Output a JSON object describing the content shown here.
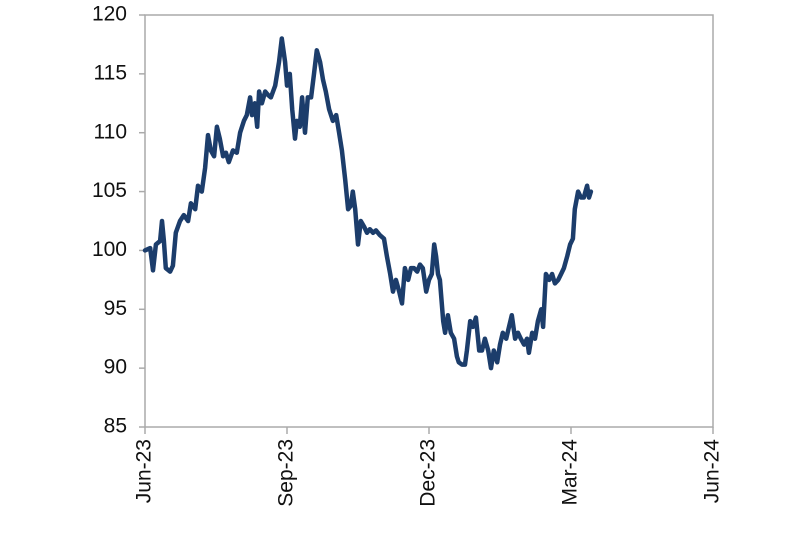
{
  "chart_data": {
    "type": "line",
    "color": "#1c3d6b",
    "xlim": [
      0,
      12
    ],
    "xticks": [
      {
        "value": 0,
        "label": "Jun-23"
      },
      {
        "value": 3,
        "label": "Sep-23"
      },
      {
        "value": 6,
        "label": "Dec-23"
      },
      {
        "value": 9,
        "label": "Mar-24"
      },
      {
        "value": 12,
        "label": "Jun-24"
      }
    ],
    "ylim": [
      85,
      120
    ],
    "yticks": [
      85,
      90,
      95,
      100,
      105,
      110,
      115,
      120
    ],
    "x": [
      0,
      0.11,
      0.17,
      0.23,
      0.32,
      0.36,
      0.4,
      0.44,
      0.53,
      0.59,
      0.65,
      0.74,
      0.82,
      0.91,
      0.97,
      1.06,
      1.12,
      1.2,
      1.27,
      1.33,
      1.39,
      1.46,
      1.52,
      1.58,
      1.65,
      1.71,
      1.77,
      1.86,
      1.94,
      2.01,
      2.09,
      2.15,
      2.22,
      2.26,
      2.32,
      2.37,
      2.41,
      2.47,
      2.54,
      2.6,
      2.66,
      2.75,
      2.83,
      2.89,
      2.96,
      3.0,
      3.06,
      3.11,
      3.17,
      3.21,
      3.27,
      3.32,
      3.38,
      3.44,
      3.51,
      3.57,
      3.63,
      3.7,
      3.76,
      3.82,
      3.89,
      3.97,
      4.04,
      4.1,
      4.16,
      4.23,
      4.29,
      4.35,
      4.39,
      4.44,
      4.5,
      4.56,
      4.63,
      4.69,
      4.75,
      4.82,
      4.88,
      4.96,
      5.05,
      5.11,
      5.18,
      5.24,
      5.3,
      5.37,
      5.43,
      5.49,
      5.56,
      5.62,
      5.68,
      5.75,
      5.81,
      5.87,
      5.94,
      6.0,
      6.06,
      6.11,
      6.15,
      6.19,
      6.23,
      6.3,
      6.34,
      6.4,
      6.46,
      6.53,
      6.59,
      6.63,
      6.7,
      6.76,
      6.8,
      6.87,
      6.93,
      6.99,
      7.06,
      7.12,
      7.18,
      7.25,
      7.31,
      7.37,
      7.44,
      7.5,
      7.56,
      7.63,
      7.69,
      7.75,
      7.82,
      7.88,
      7.94,
      8.01,
      8.07,
      8.11,
      8.18,
      8.24,
      8.3,
      8.37,
      8.41,
      8.47,
      8.54,
      8.6,
      8.66,
      8.73,
      8.79,
      8.85,
      8.92,
      8.98,
      9.04,
      9.08,
      9.15,
      9.21,
      9.27,
      9.34,
      9.38,
      9.42
    ],
    "values": [
      100,
      100.2,
      98.3,
      100.5,
      100.8,
      102.5,
      100.8,
      98.5,
      98.2,
      98.7,
      101.5,
      102.5,
      103,
      102.5,
      104,
      103.5,
      105.5,
      105,
      107,
      109.8,
      108.5,
      108,
      110.5,
      109.5,
      108,
      108.3,
      107.5,
      108.5,
      108.3,
      110,
      111,
      111.5,
      113,
      111.5,
      112.5,
      110.5,
      113.5,
      112.5,
      113.5,
      113.2,
      113,
      114,
      116,
      118,
      116,
      114,
      115,
      112,
      109.5,
      111,
      110.5,
      113,
      110,
      113,
      113,
      115,
      117,
      116,
      114.5,
      113.5,
      112,
      111,
      111.5,
      110,
      108.5,
      106,
      103.5,
      103.8,
      105,
      103.5,
      100.5,
      102.5,
      102,
      101.5,
      101.8,
      101.5,
      101.7,
      101.3,
      101,
      99.5,
      98,
      96.5,
      97.5,
      96.5,
      95.5,
      98.5,
      97.5,
      98.5,
      98.5,
      98.2,
      98.8,
      98.5,
      96.5,
      97.5,
      98,
      100.5,
      99.5,
      98,
      97.5,
      94,
      93,
      94.5,
      93,
      92.5,
      91,
      90.5,
      90.3,
      90.3,
      91.5,
      94,
      93.5,
      94.3,
      91.5,
      91.5,
      92.5,
      91.5,
      90,
      91.5,
      90.5,
      92,
      93,
      92.5,
      93.5,
      94.5,
      92.5,
      93,
      92.5,
      92,
      92.5,
      91.3,
      93,
      92.5,
      94,
      95,
      93.5,
      98,
      97.5,
      98,
      97.2,
      97.5,
      98,
      98.5,
      99.5,
      100.5,
      101,
      103.5,
      105,
      104.5,
      104.5,
      105.5,
      104.5,
      105
    ]
  }
}
